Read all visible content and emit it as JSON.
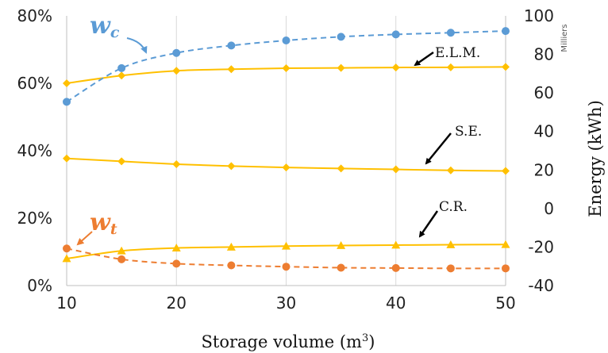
{
  "chart_data": {
    "type": "line",
    "x": [
      10,
      15,
      20,
      25,
      30,
      35,
      40,
      45,
      50
    ],
    "xlabel": "Storage volume (m",
    "xlabel_sup": "3",
    "xlabel_close": ")",
    "xlim": [
      10,
      50
    ],
    "x_ticks": [
      "10",
      "20",
      "30",
      "40",
      "50"
    ],
    "y_left": {
      "lim": [
        0,
        80
      ],
      "ticks": [
        "0%",
        "20%",
        "40%",
        "60%",
        "80%"
      ]
    },
    "y_right": {
      "label": "Energy (kWh)",
      "unit_note": "Milliers",
      "lim": [
        -40,
        100
      ],
      "ticks": [
        "-40",
        "-20",
        "0",
        "20",
        "40",
        "60",
        "80",
        "100"
      ]
    },
    "grid": "vertical",
    "series": [
      {
        "name": "E.L.M.",
        "axis": "right",
        "style": "solid",
        "marker": "diamond",
        "color": "#FFC000",
        "values": [
          65,
          69,
          71.5,
          72.3,
          72.8,
          73,
          73.2,
          73.3,
          73.5
        ]
      },
      {
        "name": "S.E.",
        "axis": "right",
        "style": "solid",
        "marker": "diamond",
        "color": "#FFC000",
        "values": [
          26,
          24.5,
          23,
          22,
          21.3,
          20.8,
          20.3,
          19.8,
          19.5
        ]
      },
      {
        "name": "C.R.",
        "axis": "right",
        "style": "solid",
        "marker": "triangle",
        "color": "#FFC000",
        "values": [
          -26,
          -22,
          -20.5,
          -20,
          -19.5,
          -19.2,
          -19,
          -18.8,
          -18.7
        ]
      },
      {
        "name": "w",
        "subscript": "c",
        "axis": "left",
        "style": "dashed",
        "marker": "circle",
        "color": "#5B9BD5",
        "values": [
          54.5,
          64.5,
          69,
          71.2,
          72.7,
          73.8,
          74.5,
          75,
          75.5
        ]
      },
      {
        "name": "w",
        "subscript": "t",
        "axis": "left",
        "style": "dashed",
        "marker": "circle",
        "color": "#ED7D31",
        "values": [
          11,
          7.8,
          6.5,
          6,
          5.6,
          5.3,
          5.2,
          5.1,
          5.1
        ]
      }
    ],
    "annotations": [
      "E.L.M.",
      "S.E.",
      "C.R."
    ]
  }
}
